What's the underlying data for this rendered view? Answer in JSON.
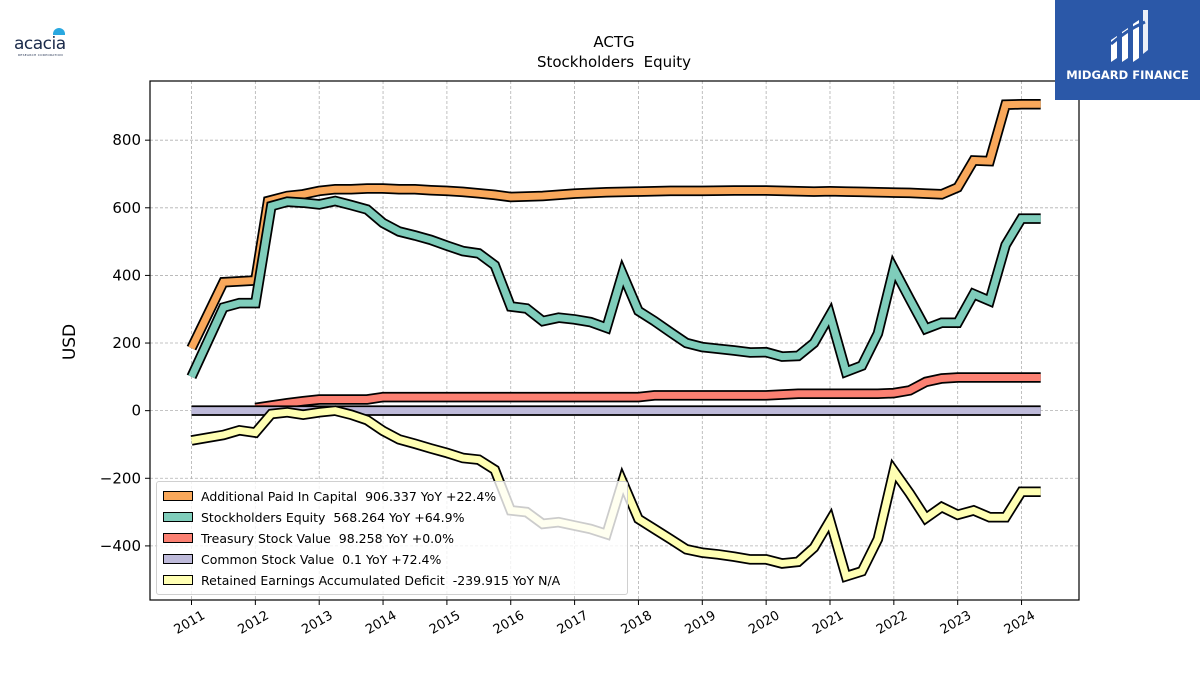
{
  "chart_data": {
    "type": "line",
    "title": "ACTG",
    "subtitle": "Stockholders  Equity",
    "ylabel": "USD",
    "xlabel": "",
    "ylim": [
      -560,
      975
    ],
    "xlim": [
      2010.35,
      2024.9
    ],
    "yticks": [
      -400,
      -200,
      0,
      200,
      400,
      600,
      800
    ],
    "ytick_labels": [
      "−400",
      "−200",
      "0",
      "200",
      "400",
      "600",
      "800"
    ],
    "xticks": [
      2011,
      2012,
      2013,
      2014,
      2015,
      2016,
      2017,
      2018,
      2019,
      2020,
      2021,
      2022,
      2023,
      2024
    ],
    "xtick_labels": [
      "2011",
      "2012",
      "2013",
      "2014",
      "2015",
      "2016",
      "2017",
      "2018",
      "2019",
      "2020",
      "2021",
      "2022",
      "2023",
      "2024"
    ],
    "grid": true,
    "legend_position": "lower-left",
    "series": [
      {
        "name": "Additional Paid In Capital  906.337 YoY +22.4%",
        "color": "#f9a85b",
        "points": [
          [
            2011.0,
            185
          ],
          [
            2011.5,
            380
          ],
          [
            2012.0,
            385
          ],
          [
            2012.2,
            620
          ],
          [
            2012.5,
            635
          ],
          [
            2012.75,
            640
          ],
          [
            2013.0,
            650
          ],
          [
            2013.25,
            655
          ],
          [
            2013.5,
            655
          ],
          [
            2013.75,
            657
          ],
          [
            2014.0,
            657
          ],
          [
            2014.25,
            655
          ],
          [
            2014.5,
            655
          ],
          [
            2014.75,
            652
          ],
          [
            2015.0,
            650
          ],
          [
            2015.25,
            647
          ],
          [
            2015.5,
            643
          ],
          [
            2015.75,
            638
          ],
          [
            2016.0,
            632
          ],
          [
            2016.5,
            635
          ],
          [
            2017.0,
            642
          ],
          [
            2017.5,
            646
          ],
          [
            2018.0,
            648
          ],
          [
            2018.5,
            650
          ],
          [
            2019.0,
            650
          ],
          [
            2019.5,
            651
          ],
          [
            2020.0,
            651
          ],
          [
            2020.25,
            650
          ],
          [
            2020.5,
            649
          ],
          [
            2020.75,
            648
          ],
          [
            2021.0,
            649
          ],
          [
            2021.25,
            648
          ],
          [
            2021.5,
            647
          ],
          [
            2021.75,
            646
          ],
          [
            2022.0,
            645
          ],
          [
            2022.25,
            644
          ],
          [
            2022.5,
            642
          ],
          [
            2022.75,
            640
          ],
          [
            2023.0,
            660
          ],
          [
            2023.25,
            740
          ],
          [
            2023.5,
            738
          ],
          [
            2023.75,
            905
          ],
          [
            2024.0,
            906
          ],
          [
            2024.3,
            906
          ]
        ]
      },
      {
        "name": "Stockholders Equity  568.264 YoY +64.9%",
        "color": "#7fcdbb",
        "points": [
          [
            2011.0,
            100
          ],
          [
            2011.5,
            305
          ],
          [
            2011.75,
            318
          ],
          [
            2012.0,
            318
          ],
          [
            2012.25,
            605
          ],
          [
            2012.5,
            618
          ],
          [
            2012.75,
            615
          ],
          [
            2013.0,
            610
          ],
          [
            2013.25,
            620
          ],
          [
            2013.5,
            608
          ],
          [
            2013.75,
            595
          ],
          [
            2014.0,
            555
          ],
          [
            2014.25,
            530
          ],
          [
            2014.5,
            518
          ],
          [
            2014.75,
            505
          ],
          [
            2015.0,
            488
          ],
          [
            2015.25,
            472
          ],
          [
            2015.5,
            465
          ],
          [
            2015.75,
            430
          ],
          [
            2016.0,
            308
          ],
          [
            2016.25,
            302
          ],
          [
            2016.5,
            265
          ],
          [
            2016.75,
            275
          ],
          [
            2017.0,
            270
          ],
          [
            2017.25,
            262
          ],
          [
            2017.5,
            245
          ],
          [
            2017.75,
            405
          ],
          [
            2018.0,
            295
          ],
          [
            2018.25,
            265
          ],
          [
            2018.5,
            232
          ],
          [
            2018.75,
            200
          ],
          [
            2019.0,
            188
          ],
          [
            2019.25,
            183
          ],
          [
            2019.5,
            178
          ],
          [
            2019.75,
            172
          ],
          [
            2020.0,
            173
          ],
          [
            2020.25,
            160
          ],
          [
            2020.5,
            162
          ],
          [
            2020.75,
            200
          ],
          [
            2021.0,
            283
          ],
          [
            2021.25,
            115
          ],
          [
            2021.5,
            133
          ],
          [
            2021.75,
            228
          ],
          [
            2022.0,
            420
          ],
          [
            2022.25,
            330
          ],
          [
            2022.5,
            242
          ],
          [
            2022.75,
            260
          ],
          [
            2023.0,
            260
          ],
          [
            2023.25,
            345
          ],
          [
            2023.5,
            325
          ],
          [
            2023.75,
            490
          ],
          [
            2024.0,
            568
          ],
          [
            2024.3,
            568
          ]
        ]
      },
      {
        "name": "Treasury Stock Value  98.258 YoY +0.0%",
        "color": "#fb8072",
        "points": [
          [
            2012.0,
            8
          ],
          [
            2012.25,
            15
          ],
          [
            2012.5,
            22
          ],
          [
            2012.75,
            28
          ],
          [
            2013.0,
            33
          ],
          [
            2013.5,
            33
          ],
          [
            2013.75,
            33
          ],
          [
            2014.0,
            40
          ],
          [
            2014.5,
            40
          ],
          [
            2015.0,
            40
          ],
          [
            2016.0,
            40
          ],
          [
            2017.0,
            40
          ],
          [
            2018.0,
            40
          ],
          [
            2018.25,
            45
          ],
          [
            2019.0,
            45
          ],
          [
            2020.0,
            45
          ],
          [
            2020.5,
            50
          ],
          [
            2021.0,
            50
          ],
          [
            2021.75,
            50
          ],
          [
            2022.0,
            52
          ],
          [
            2022.25,
            60
          ],
          [
            2022.5,
            85
          ],
          [
            2022.75,
            95
          ],
          [
            2023.0,
            98
          ],
          [
            2024.3,
            98
          ]
        ]
      },
      {
        "name": "Common Stock Value  0.1 YoY +72.4%",
        "color": "#bebada",
        "points": [
          [
            2011.0,
            0.1
          ],
          [
            2024.3,
            0.1
          ]
        ]
      },
      {
        "name": "Retained Earnings Accumulated Deficit  -239.915 YoY N/A",
        "color": "#ffffb3",
        "points": [
          [
            2011.0,
            -88
          ],
          [
            2011.25,
            -80
          ],
          [
            2011.5,
            -72
          ],
          [
            2011.75,
            -58
          ],
          [
            2012.0,
            -65
          ],
          [
            2012.25,
            -10
          ],
          [
            2012.5,
            -5
          ],
          [
            2012.75,
            -12
          ],
          [
            2013.0,
            -5
          ],
          [
            2013.25,
            0
          ],
          [
            2013.5,
            -12
          ],
          [
            2013.75,
            -28
          ],
          [
            2014.0,
            -60
          ],
          [
            2014.25,
            -85
          ],
          [
            2014.5,
            -98
          ],
          [
            2014.75,
            -112
          ],
          [
            2015.0,
            -125
          ],
          [
            2015.25,
            -140
          ],
          [
            2015.5,
            -145
          ],
          [
            2015.75,
            -175
          ],
          [
            2016.0,
            -295
          ],
          [
            2016.25,
            -300
          ],
          [
            2016.5,
            -335
          ],
          [
            2016.75,
            -330
          ],
          [
            2017.0,
            -340
          ],
          [
            2017.25,
            -350
          ],
          [
            2017.5,
            -365
          ],
          [
            2017.75,
            -210
          ],
          [
            2018.0,
            -320
          ],
          [
            2018.25,
            -350
          ],
          [
            2018.5,
            -380
          ],
          [
            2018.75,
            -410
          ],
          [
            2019.0,
            -420
          ],
          [
            2019.25,
            -425
          ],
          [
            2019.5,
            -432
          ],
          [
            2019.75,
            -440
          ],
          [
            2020.0,
            -440
          ],
          [
            2020.25,
            -452
          ],
          [
            2020.5,
            -447
          ],
          [
            2020.75,
            -405
          ],
          [
            2021.0,
            -325
          ],
          [
            2021.25,
            -490
          ],
          [
            2021.5,
            -475
          ],
          [
            2021.75,
            -380
          ],
          [
            2022.0,
            -178
          ],
          [
            2022.25,
            -245
          ],
          [
            2022.5,
            -318
          ],
          [
            2022.75,
            -285
          ],
          [
            2023.0,
            -308
          ],
          [
            2023.25,
            -295
          ],
          [
            2023.5,
            -315
          ],
          [
            2023.75,
            -315
          ],
          [
            2024.0,
            -240
          ],
          [
            2024.3,
            -240
          ]
        ]
      }
    ]
  },
  "branding": {
    "left_logo_text": "acacia",
    "left_logo_subtext": "RESEARCH CORPORATION",
    "right_logo_text": "MIDGARD FINANCE",
    "right_logo_bg": "#2b58a8"
  }
}
